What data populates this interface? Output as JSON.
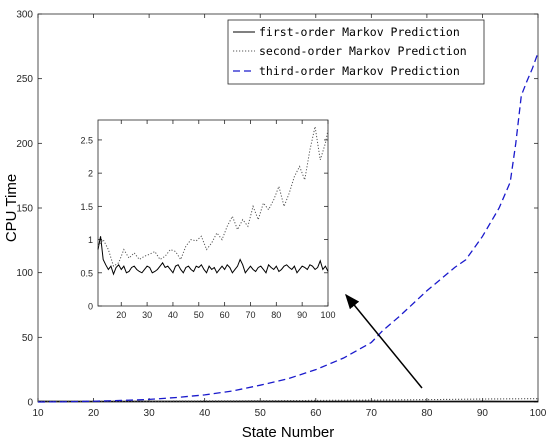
{
  "chart_data": [
    {
      "type": "line",
      "xlabel": "State Number",
      "ylabel": "CPU Time",
      "xlim": [
        10,
        100
      ],
      "ylim": [
        0,
        300
      ],
      "xticks": [
        10,
        20,
        30,
        40,
        50,
        60,
        70,
        80,
        90,
        100
      ],
      "yticks": [
        0,
        50,
        100,
        150,
        200,
        250,
        300
      ],
      "legend_position": "top-right",
      "series": [
        {
          "name": "first-order Markov Prediction",
          "color": "#000000",
          "style": "solid",
          "x": [
            10,
            20,
            30,
            40,
            50,
            60,
            70,
            80,
            90,
            100
          ],
          "values": [
            0.6,
            0.5,
            0.6,
            0.5,
            0.6,
            0.5,
            0.6,
            0.5,
            0.6,
            0.5
          ]
        },
        {
          "name": "second-order Markov Prediction",
          "color": "#555555",
          "style": "dotted",
          "x": [
            10,
            20,
            30,
            40,
            50,
            60,
            70,
            80,
            90,
            100
          ],
          "values": [
            0.8,
            0.6,
            0.7,
            0.9,
            1.0,
            1.2,
            1.5,
            1.8,
            2.3,
            2.6
          ]
        },
        {
          "name": "third-order Markov Prediction",
          "color": "#1a1acc",
          "style": "dashed",
          "x": [
            10,
            15,
            20,
            25,
            30,
            35,
            40,
            45,
            50,
            55,
            60,
            65,
            70,
            72,
            75,
            80,
            85,
            87,
            90,
            93,
            95,
            96,
            97,
            98,
            99,
            100
          ],
          "values": [
            0,
            0.2,
            0.6,
            1.2,
            2,
            3.5,
            5.5,
            8.5,
            13,
            18,
            25,
            34,
            46,
            55,
            66,
            86,
            104,
            110,
            128,
            150,
            170,
            200,
            237,
            248,
            258,
            270
          ]
        }
      ]
    },
    {
      "type": "line",
      "inset": true,
      "xlim": [
        11,
        100
      ],
      "ylim": [
        0,
        2.8
      ],
      "xticks": [
        20,
        30,
        40,
        50,
        60,
        70,
        80,
        90,
        100
      ],
      "yticks": [
        0,
        0.5,
        1,
        1.5,
        2,
        2.5
      ],
      "series": [
        {
          "name": "first-order Markov Prediction",
          "color": "#000000",
          "style": "solid",
          "x": [
            11,
            12,
            13,
            14,
            15,
            16,
            17,
            18,
            19,
            20,
            21,
            22,
            23,
            24,
            25,
            26,
            27,
            28,
            29,
            30,
            31,
            32,
            33,
            34,
            35,
            36,
            37,
            38,
            39,
            40,
            41,
            42,
            43,
            44,
            45,
            46,
            47,
            48,
            49,
            50,
            51,
            52,
            53,
            54,
            55,
            56,
            57,
            58,
            59,
            60,
            61,
            62,
            63,
            64,
            65,
            66,
            67,
            68,
            69,
            70,
            71,
            72,
            73,
            74,
            75,
            76,
            77,
            78,
            79,
            80,
            81,
            82,
            83,
            84,
            85,
            86,
            87,
            88,
            89,
            90,
            91,
            92,
            93,
            94,
            95,
            96,
            97,
            98,
            99,
            100
          ],
          "values": [
            0.85,
            1.05,
            0.7,
            0.62,
            0.55,
            0.6,
            0.48,
            0.58,
            0.62,
            0.55,
            0.6,
            0.5,
            0.52,
            0.58,
            0.6,
            0.55,
            0.52,
            0.5,
            0.55,
            0.6,
            0.58,
            0.5,
            0.52,
            0.55,
            0.6,
            0.65,
            0.58,
            0.6,
            0.55,
            0.5,
            0.6,
            0.62,
            0.55,
            0.5,
            0.58,
            0.6,
            0.55,
            0.52,
            0.6,
            0.58,
            0.62,
            0.55,
            0.5,
            0.6,
            0.55,
            0.58,
            0.5,
            0.55,
            0.6,
            0.55,
            0.62,
            0.58,
            0.5,
            0.55,
            0.6,
            0.7,
            0.62,
            0.5,
            0.55,
            0.6,
            0.55,
            0.52,
            0.58,
            0.6,
            0.55,
            0.5,
            0.62,
            0.58,
            0.55,
            0.6,
            0.52,
            0.55,
            0.6,
            0.62,
            0.58,
            0.55,
            0.6,
            0.5,
            0.55,
            0.6,
            0.58,
            0.55,
            0.62,
            0.6,
            0.55,
            0.58,
            0.68,
            0.55,
            0.6,
            0.52
          ]
        },
        {
          "name": "second-order Markov Prediction",
          "color": "#555555",
          "style": "dotted",
          "x": [
            11,
            13,
            15,
            17,
            19,
            21,
            23,
            25,
            27,
            29,
            31,
            33,
            35,
            37,
            39,
            41,
            43,
            45,
            47,
            49,
            51,
            53,
            55,
            57,
            59,
            61,
            63,
            65,
            67,
            69,
            71,
            73,
            75,
            77,
            79,
            81,
            83,
            85,
            87,
            89,
            91,
            93,
            95,
            97,
            99,
            100
          ],
          "values": [
            0.9,
            1.0,
            0.85,
            0.6,
            0.65,
            0.85,
            0.72,
            0.8,
            0.7,
            0.75,
            0.78,
            0.82,
            0.7,
            0.75,
            0.85,
            0.82,
            0.7,
            0.9,
            1.0,
            0.98,
            1.05,
            0.85,
            0.95,
            1.1,
            1.0,
            1.2,
            1.35,
            1.15,
            1.3,
            1.2,
            1.5,
            1.3,
            1.55,
            1.45,
            1.6,
            1.8,
            1.5,
            1.7,
            1.95,
            2.1,
            1.9,
            2.35,
            2.7,
            2.2,
            2.45,
            2.65
          ]
        }
      ]
    }
  ]
}
